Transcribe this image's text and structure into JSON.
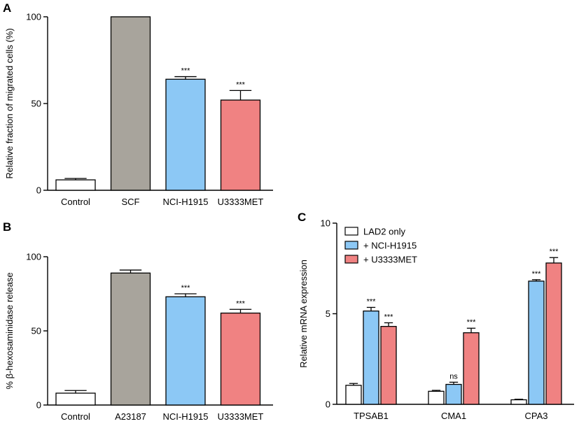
{
  "chart_data": [
    {
      "panel": "A",
      "type": "bar",
      "ylabel": "Relative fraction of migrated cells (%)",
      "ylim": [
        0,
        100
      ],
      "yticks": [
        0,
        50,
        100
      ],
      "categories": [
        "Control",
        "SCF",
        "NCI-H1915",
        "U3333MET"
      ],
      "values": [
        6,
        100,
        64,
        52
      ],
      "errors": [
        0.8,
        0,
        1.5,
        5.5
      ],
      "colors": [
        "#ffffff",
        "#a8a49c",
        "#8cc8f5",
        "#f08282"
      ],
      "annotations": [
        "",
        "",
        "***",
        "***"
      ]
    },
    {
      "panel": "B",
      "type": "bar",
      "ylabel": "% β-hexosaminidase release",
      "ylim": [
        0,
        100
      ],
      "yticks": [
        0,
        50,
        100
      ],
      "categories": [
        "Control",
        "A23187",
        "NCI-H1915",
        "U3333MET"
      ],
      "values": [
        8,
        89,
        73,
        62
      ],
      "errors": [
        1.8,
        2,
        2,
        2.5
      ],
      "colors": [
        "#ffffff",
        "#a8a49c",
        "#8cc8f5",
        "#f08282"
      ],
      "annotations": [
        "",
        "",
        "***",
        "***"
      ]
    },
    {
      "panel": "C",
      "type": "bar",
      "ylabel": "Relative mRNA expression",
      "ylim": [
        0,
        10
      ],
      "yticks": [
        0,
        5,
        10
      ],
      "categories": [
        "TPSAB1",
        "CMA1",
        "CPA3"
      ],
      "legend_position": "top-left",
      "series": [
        {
          "name": "LAD2 only",
          "color": "#ffffff",
          "values": [
            1.05,
            0.72,
            0.25
          ],
          "errors": [
            0.1,
            0.05,
            0.03
          ],
          "annotations": [
            "",
            "",
            ""
          ]
        },
        {
          "name": "+ NCI-H1915",
          "color": "#8cc8f5",
          "values": [
            5.15,
            1.1,
            6.8
          ],
          "errors": [
            0.2,
            0.12,
            0.08
          ],
          "annotations": [
            "***",
            "ns",
            "***"
          ]
        },
        {
          "name": "+ U3333MET",
          "color": "#f08282",
          "values": [
            4.3,
            3.95,
            7.8
          ],
          "errors": [
            0.2,
            0.25,
            0.3
          ],
          "annotations": [
            "***",
            "***",
            "***"
          ]
        }
      ]
    }
  ]
}
